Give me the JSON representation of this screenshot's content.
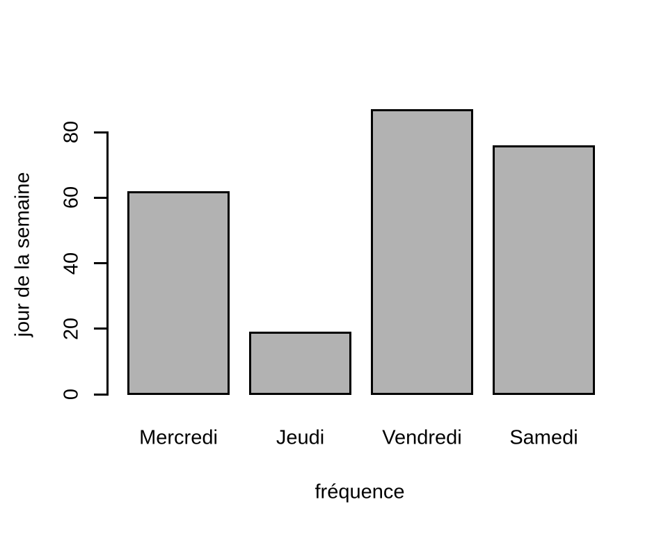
{
  "chart_data": {
    "type": "bar",
    "categories": [
      "Mercredi",
      "Jeudi",
      "Vendredi",
      "Samedi"
    ],
    "values": [
      62,
      19,
      87,
      76
    ],
    "title": "",
    "xlabel": "fréquence",
    "ylabel": "jour de la semaine",
    "yticks": [
      0,
      20,
      40,
      60,
      80
    ],
    "ylim": [
      0,
      88
    ],
    "grid": false,
    "legend": false,
    "colors": {
      "bar_fill": "#b2b2b2",
      "bar_border": "#000000",
      "axis": "#000000",
      "text": "#000000",
      "background": "#ffffff"
    }
  }
}
